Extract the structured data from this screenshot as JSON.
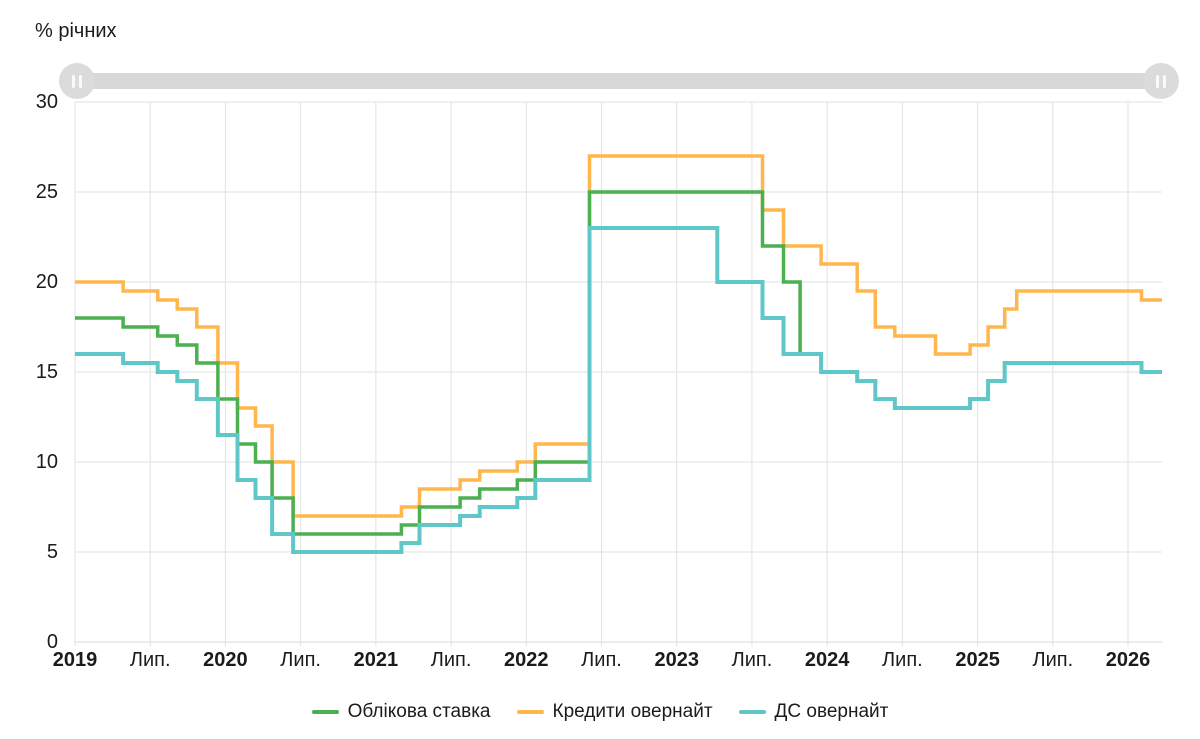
{
  "title": "% річних",
  "slider": {
    "left_handle_icon": "pause-bars-icon",
    "right_handle_icon": "pause-bars-icon"
  },
  "chart_data": {
    "type": "line",
    "step": true,
    "title": "% річних",
    "xlabel": "",
    "ylabel": "% річних",
    "grid": true,
    "legend_position": "bottom",
    "y_axis": {
      "min": 0,
      "max": 30,
      "tick_step": 5,
      "ticks": [
        0,
        5,
        10,
        15,
        20,
        25,
        30
      ]
    },
    "x_axis": {
      "start": 2019,
      "end": 2026.23,
      "ticks": [
        {
          "t": 2019,
          "label": "2019",
          "bold": true
        },
        {
          "t": 2019.5,
          "label": "Лип.",
          "bold": false
        },
        {
          "t": 2020,
          "label": "2020",
          "bold": true
        },
        {
          "t": 2020.5,
          "label": "Лип.",
          "bold": false
        },
        {
          "t": 2021,
          "label": "2021",
          "bold": true
        },
        {
          "t": 2021.5,
          "label": "Лип.",
          "bold": false
        },
        {
          "t": 2022,
          "label": "2022",
          "bold": true
        },
        {
          "t": 2022.5,
          "label": "Лип.",
          "bold": false
        },
        {
          "t": 2023,
          "label": "2023",
          "bold": true
        },
        {
          "t": 2023.5,
          "label": "Лип.",
          "bold": false
        },
        {
          "t": 2024,
          "label": "2024",
          "bold": true
        },
        {
          "t": 2024.5,
          "label": "Лип.",
          "bold": false
        },
        {
          "t": 2025,
          "label": "2025",
          "bold": true
        },
        {
          "t": 2025.5,
          "label": "Лип.",
          "bold": false
        },
        {
          "t": 2026,
          "label": "2026",
          "bold": true
        }
      ]
    },
    "draw_order": [
      1,
      0,
      2
    ],
    "series": [
      {
        "name": "Облікова ставка",
        "color": "#4caf50",
        "width": 3.5,
        "points": [
          [
            2019.0,
            18
          ],
          [
            2019.32,
            17.5
          ],
          [
            2019.55,
            17
          ],
          [
            2019.68,
            16.5
          ],
          [
            2019.81,
            15.5
          ],
          [
            2019.95,
            13.5
          ],
          [
            2020.08,
            11
          ],
          [
            2020.2,
            10
          ],
          [
            2020.31,
            8
          ],
          [
            2020.45,
            6
          ],
          [
            2021.17,
            6.5
          ],
          [
            2021.29,
            7.5
          ],
          [
            2021.56,
            8
          ],
          [
            2021.69,
            8.5
          ],
          [
            2021.94,
            9
          ],
          [
            2022.06,
            10
          ],
          [
            2022.42,
            25
          ],
          [
            2023.57,
            22
          ],
          [
            2023.71,
            20
          ],
          [
            2023.82,
            16
          ],
          [
            2023.96,
            15
          ],
          [
            2024.2,
            14.5
          ],
          [
            2024.32,
            13.5
          ],
          [
            2024.45,
            13
          ],
          [
            2024.95,
            13.5
          ],
          [
            2025.07,
            14.5
          ],
          [
            2025.18,
            15.5
          ],
          [
            2026.09,
            15
          ]
        ]
      },
      {
        "name": "Кредити овернайт",
        "color": "#ffb74d",
        "width": 3.5,
        "points": [
          [
            2019.0,
            20
          ],
          [
            2019.32,
            19.5
          ],
          [
            2019.55,
            19
          ],
          [
            2019.68,
            18.5
          ],
          [
            2019.81,
            17.5
          ],
          [
            2019.95,
            15.5
          ],
          [
            2020.08,
            13
          ],
          [
            2020.2,
            12
          ],
          [
            2020.31,
            10
          ],
          [
            2020.45,
            7
          ],
          [
            2021.17,
            7.5
          ],
          [
            2021.29,
            8.5
          ],
          [
            2021.56,
            9
          ],
          [
            2021.69,
            9.5
          ],
          [
            2021.94,
            10
          ],
          [
            2022.06,
            11
          ],
          [
            2022.42,
            27
          ],
          [
            2023.57,
            24
          ],
          [
            2023.71,
            22
          ],
          [
            2023.96,
            21
          ],
          [
            2024.2,
            19.5
          ],
          [
            2024.32,
            17.5
          ],
          [
            2024.45,
            17
          ],
          [
            2024.72,
            16
          ],
          [
            2024.95,
            16.5
          ],
          [
            2025.07,
            17.5
          ],
          [
            2025.18,
            18.5
          ],
          [
            2025.26,
            19.5
          ],
          [
            2026.09,
            19
          ]
        ]
      },
      {
        "name": "ДС овернайт",
        "color": "#60c7c9",
        "width": 4,
        "points": [
          [
            2019.0,
            16
          ],
          [
            2019.32,
            15.5
          ],
          [
            2019.55,
            15
          ],
          [
            2019.68,
            14.5
          ],
          [
            2019.81,
            13.5
          ],
          [
            2019.95,
            11.5
          ],
          [
            2020.08,
            9
          ],
          [
            2020.2,
            8
          ],
          [
            2020.31,
            6
          ],
          [
            2020.45,
            5
          ],
          [
            2021.17,
            5.5
          ],
          [
            2021.29,
            6.5
          ],
          [
            2021.56,
            7
          ],
          [
            2021.69,
            7.5
          ],
          [
            2021.94,
            8
          ],
          [
            2022.06,
            9
          ],
          [
            2022.42,
            23
          ],
          [
            2023.27,
            20
          ],
          [
            2023.57,
            18
          ],
          [
            2023.71,
            16
          ],
          [
            2023.96,
            15
          ],
          [
            2024.2,
            14.5
          ],
          [
            2024.32,
            13.5
          ],
          [
            2024.45,
            13
          ],
          [
            2024.95,
            13.5
          ],
          [
            2025.07,
            14.5
          ],
          [
            2025.18,
            15.5
          ],
          [
            2026.09,
            15
          ]
        ]
      }
    ]
  },
  "colors": {
    "grid": "#e2e2e2",
    "axis": "#d9d9d9",
    "text": "#1b1b1b",
    "slider_track": "#d8d8d8",
    "slider_handle": "#dbdbdb"
  }
}
